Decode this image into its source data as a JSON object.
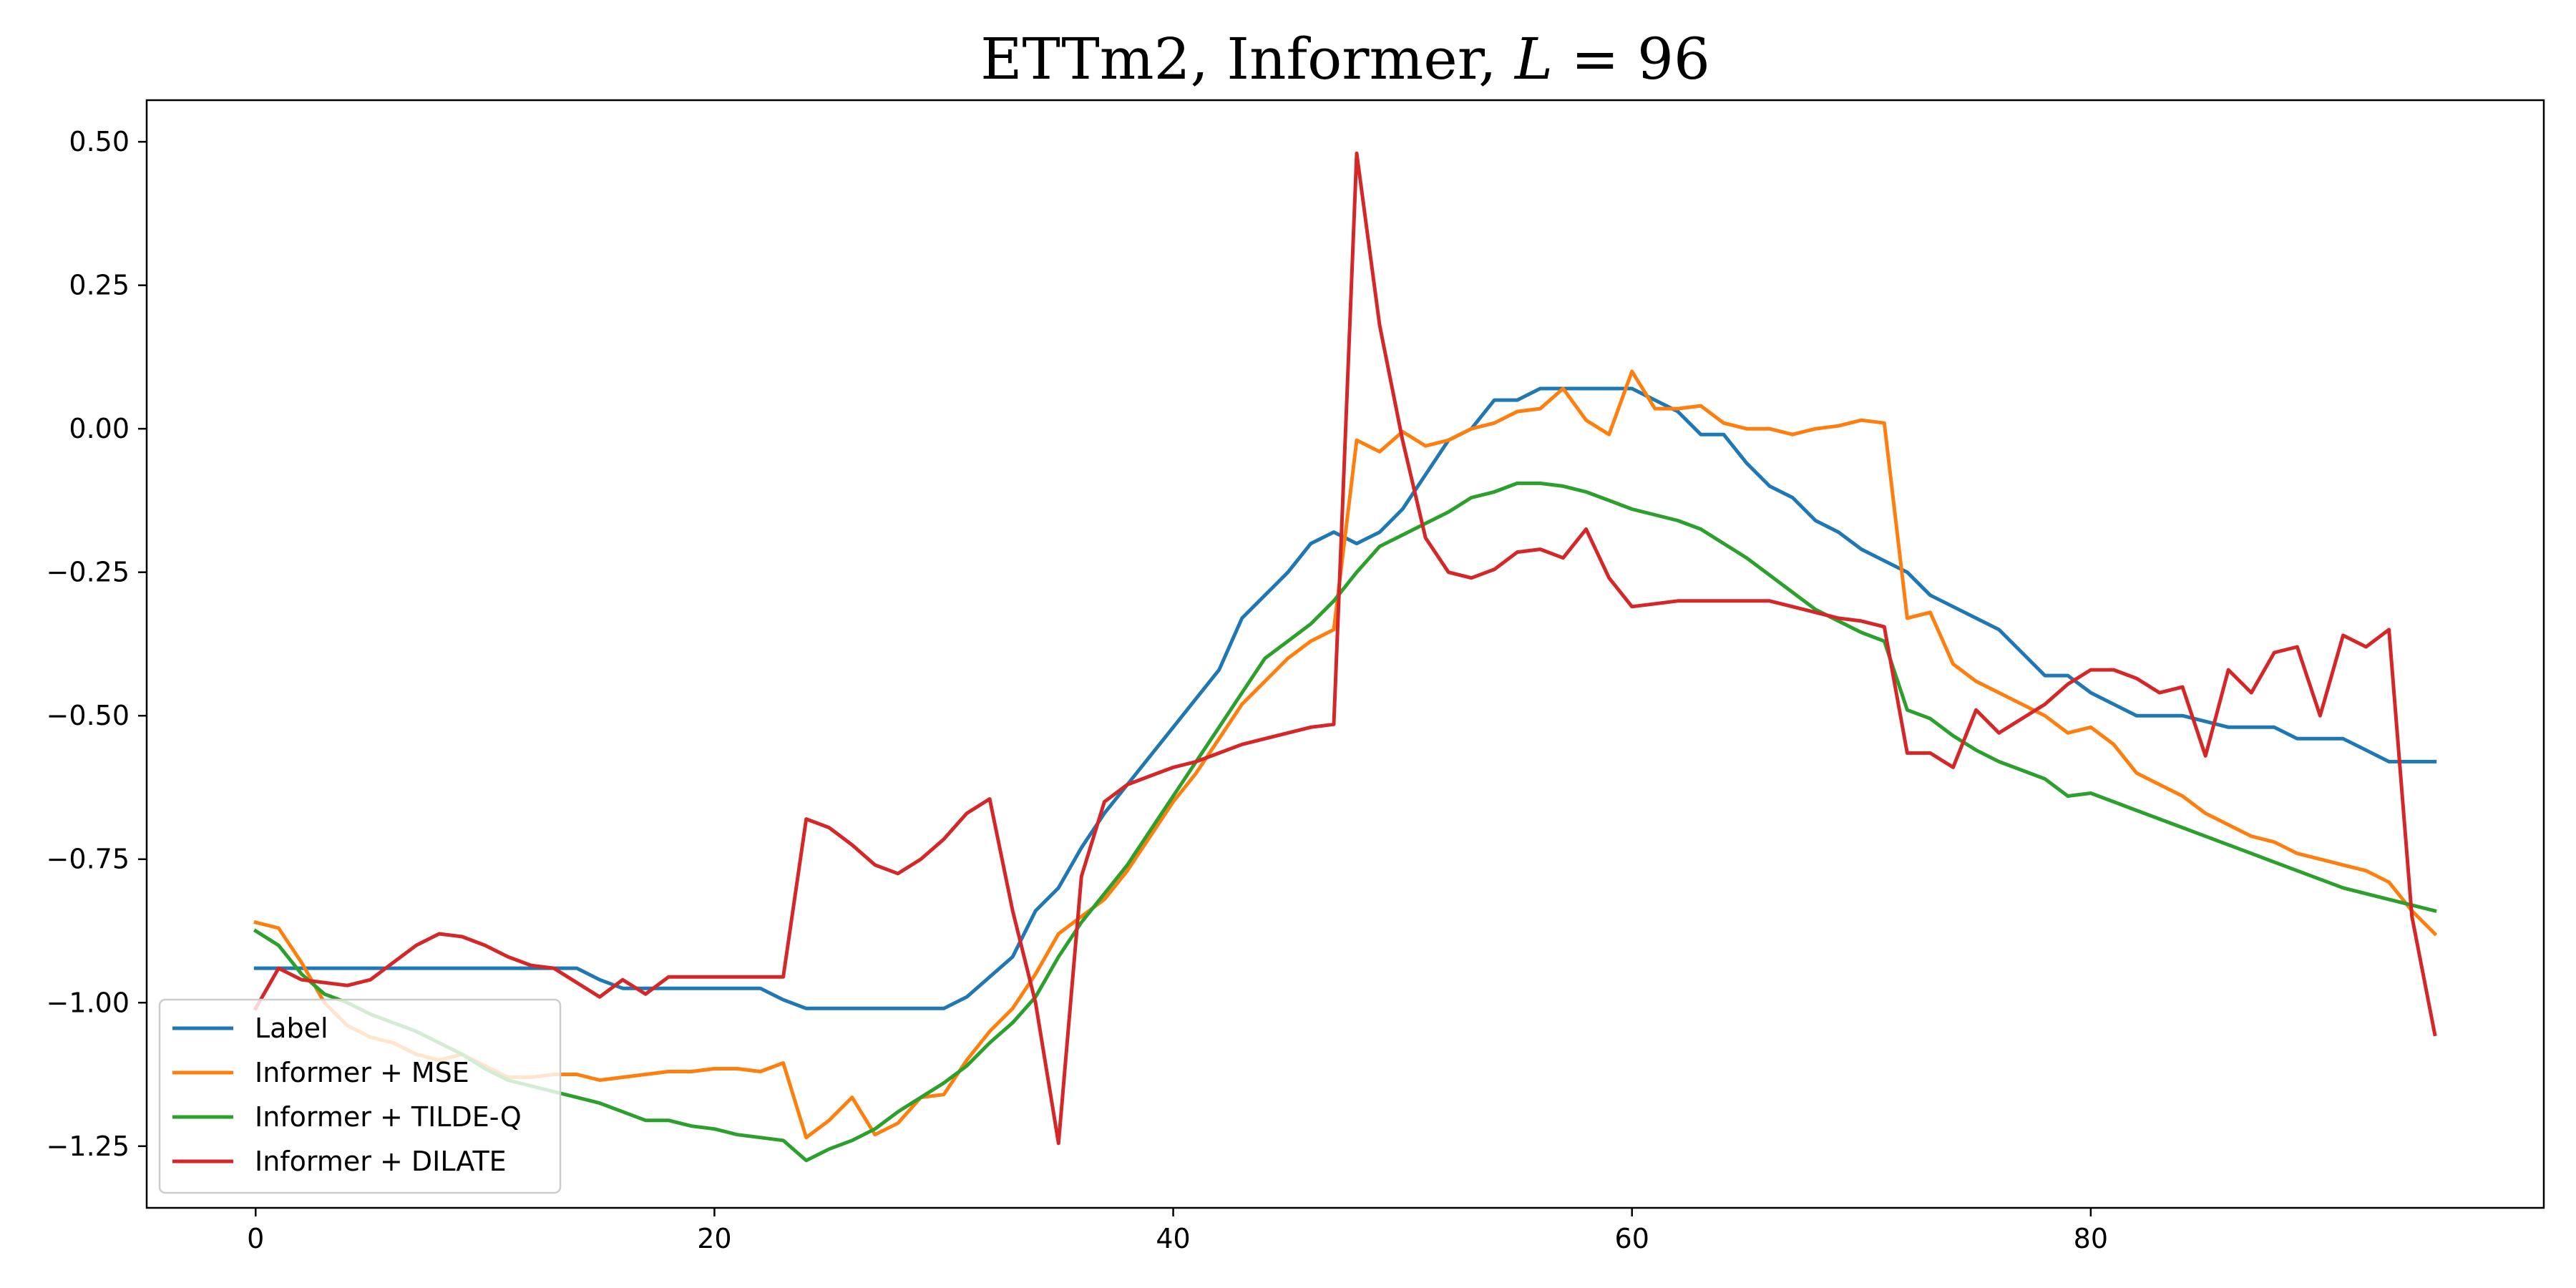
{
  "chart_data": {
    "type": "line",
    "title": "ETTm2, Informer, L = 96",
    "title_parts": [
      "ETTm2, Informer, ",
      "L",
      " = 96"
    ],
    "xlabel": "",
    "ylabel": "",
    "xlim": [
      -4.75,
      99.75
    ],
    "ylim": [
      -1.3575,
      0.5725
    ],
    "xticks": [
      0,
      20,
      40,
      60,
      80
    ],
    "xtick_labels": [
      "0",
      "20",
      "40",
      "60",
      "80"
    ],
    "yticks": [
      0.5,
      0.25,
      0.0,
      -0.25,
      -0.5,
      -0.75,
      -1.0,
      -1.25
    ],
    "ytick_labels": [
      "0.50",
      "0.25",
      "0.00",
      "−0.25",
      "−0.50",
      "−0.75",
      "−1.00",
      "−1.25"
    ],
    "grid": false,
    "legend_position": "lower-left",
    "series": [
      {
        "name": "Label",
        "color": "#1f77b4",
        "values": [
          -0.94,
          -0.94,
          -0.94,
          -0.94,
          -0.94,
          -0.94,
          -0.94,
          -0.94,
          -0.94,
          -0.94,
          -0.94,
          -0.94,
          -0.94,
          -0.94,
          -0.94,
          -0.96,
          -0.975,
          -0.975,
          -0.975,
          -0.975,
          -0.975,
          -0.975,
          -0.975,
          -0.995,
          -1.01,
          -1.01,
          -1.01,
          -1.01,
          -1.01,
          -1.01,
          -1.01,
          -0.99,
          -0.955,
          -0.92,
          -0.84,
          -0.8,
          -0.73,
          -0.67,
          -0.62,
          -0.57,
          -0.52,
          -0.47,
          -0.42,
          -0.33,
          -0.29,
          -0.25,
          -0.2,
          -0.18,
          -0.2,
          -0.18,
          -0.14,
          -0.08,
          -0.02,
          0.0,
          0.05,
          0.05,
          0.07,
          0.07,
          0.07,
          0.07,
          0.07,
          0.05,
          0.03,
          -0.01,
          -0.01,
          -0.06,
          -0.1,
          -0.12,
          -0.16,
          -0.18,
          -0.21,
          -0.23,
          -0.25,
          -0.29,
          -0.31,
          -0.33,
          -0.35,
          -0.39,
          -0.43,
          -0.43,
          -0.46,
          -0.48,
          -0.5,
          -0.5,
          -0.5,
          -0.51,
          -0.52,
          -0.52,
          -0.52,
          -0.54,
          -0.54,
          -0.54,
          -0.56,
          -0.58,
          -0.58,
          -0.58
        ]
      },
      {
        "name": "Informer + MSE",
        "color": "#ff7f0e",
        "values": [
          -0.86,
          -0.87,
          -0.93,
          -1.0,
          -1.04,
          -1.06,
          -1.07,
          -1.09,
          -1.1,
          -1.09,
          -1.11,
          -1.13,
          -1.13,
          -1.125,
          -1.125,
          -1.135,
          -1.13,
          -1.125,
          -1.12,
          -1.12,
          -1.115,
          -1.115,
          -1.12,
          -1.105,
          -1.235,
          -1.205,
          -1.165,
          -1.23,
          -1.21,
          -1.165,
          -1.16,
          -1.1,
          -1.05,
          -1.01,
          -0.95,
          -0.88,
          -0.85,
          -0.82,
          -0.77,
          -0.71,
          -0.65,
          -0.6,
          -0.54,
          -0.48,
          -0.44,
          -0.4,
          -0.37,
          -0.35,
          -0.02,
          -0.04,
          -0.005,
          -0.03,
          -0.02,
          0.0,
          0.01,
          0.03,
          0.035,
          0.07,
          0.015,
          -0.01,
          0.1,
          0.035,
          0.035,
          0.04,
          0.01,
          0.0,
          0.0,
          -0.01,
          0.0,
          0.005,
          0.015,
          0.01,
          -0.33,
          -0.32,
          -0.41,
          -0.44,
          -0.46,
          -0.48,
          -0.5,
          -0.53,
          -0.52,
          -0.55,
          -0.6,
          -0.62,
          -0.64,
          -0.67,
          -0.69,
          -0.71,
          -0.72,
          -0.74,
          -0.75,
          -0.76,
          -0.77,
          -0.79,
          -0.84,
          -0.88
        ]
      },
      {
        "name": "Informer + TILDE-Q",
        "color": "#2ca02c",
        "values": [
          -0.875,
          -0.9,
          -0.95,
          -0.985,
          -1.0,
          -1.02,
          -1.035,
          -1.05,
          -1.07,
          -1.09,
          -1.115,
          -1.135,
          -1.145,
          -1.155,
          -1.165,
          -1.175,
          -1.19,
          -1.205,
          -1.205,
          -1.215,
          -1.22,
          -1.23,
          -1.235,
          -1.24,
          -1.275,
          -1.255,
          -1.24,
          -1.22,
          -1.19,
          -1.165,
          -1.14,
          -1.11,
          -1.07,
          -1.035,
          -0.99,
          -0.92,
          -0.86,
          -0.81,
          -0.76,
          -0.7,
          -0.64,
          -0.58,
          -0.52,
          -0.46,
          -0.4,
          -0.37,
          -0.34,
          -0.3,
          -0.25,
          -0.205,
          -0.185,
          -0.165,
          -0.145,
          -0.12,
          -0.11,
          -0.095,
          -0.095,
          -0.1,
          -0.11,
          -0.125,
          -0.14,
          -0.15,
          -0.16,
          -0.175,
          -0.2,
          -0.225,
          -0.255,
          -0.285,
          -0.315,
          -0.335,
          -0.355,
          -0.37,
          -0.49,
          -0.505,
          -0.535,
          -0.56,
          -0.58,
          -0.595,
          -0.61,
          -0.64,
          -0.635,
          -0.65,
          -0.665,
          -0.68,
          -0.695,
          -0.71,
          -0.725,
          -0.74,
          -0.755,
          -0.77,
          -0.785,
          -0.8,
          -0.81,
          -0.82,
          -0.83,
          -0.84
        ]
      },
      {
        "name": "Informer + DILATE",
        "color": "#d62728",
        "values": [
          -1.01,
          -0.94,
          -0.96,
          -0.965,
          -0.97,
          -0.96,
          -0.93,
          -0.9,
          -0.88,
          -0.885,
          -0.9,
          -0.92,
          -0.935,
          -0.94,
          -0.965,
          -0.99,
          -0.96,
          -0.985,
          -0.955,
          -0.955,
          -0.955,
          -0.955,
          -0.955,
          -0.955,
          -0.68,
          -0.695,
          -0.725,
          -0.76,
          -0.775,
          -0.75,
          -0.715,
          -0.67,
          -0.645,
          -0.84,
          -1.0,
          -1.245,
          -0.78,
          -0.65,
          -0.62,
          -0.605,
          -0.59,
          -0.58,
          -0.565,
          -0.55,
          -0.54,
          -0.53,
          -0.52,
          -0.515,
          0.48,
          0.18,
          -0.02,
          -0.19,
          -0.25,
          -0.26,
          -0.245,
          -0.215,
          -0.21,
          -0.225,
          -0.175,
          -0.26,
          -0.31,
          -0.305,
          -0.3,
          -0.3,
          -0.3,
          -0.3,
          -0.3,
          -0.31,
          -0.32,
          -0.33,
          -0.335,
          -0.345,
          -0.565,
          -0.565,
          -0.59,
          -0.49,
          -0.53,
          -0.505,
          -0.48,
          -0.445,
          -0.42,
          -0.42,
          -0.435,
          -0.46,
          -0.45,
          -0.57,
          -0.42,
          -0.46,
          -0.39,
          -0.38,
          -0.5,
          -0.36,
          -0.38,
          -0.35,
          -0.85,
          -1.055
        ]
      }
    ]
  }
}
